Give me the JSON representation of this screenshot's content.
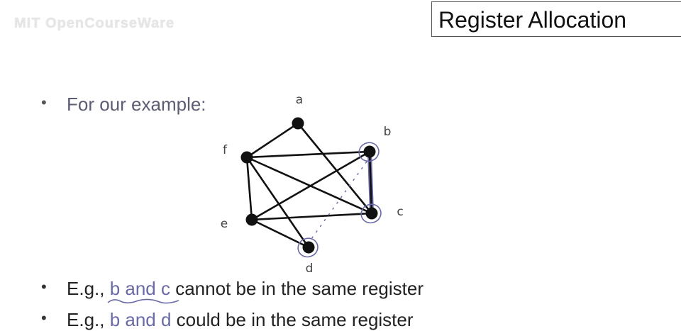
{
  "watermark": "MIT OpenCourseWare",
  "title": "Register Allocation",
  "bullets": {
    "b1": "For our example:",
    "b2": {
      "prefix": "E.g., ",
      "pair": "b and c",
      "suffix": " cannot be in the same register"
    },
    "b3": {
      "prefix": "E.g., ",
      "pair": "b and d",
      "suffix": " could be in the same register"
    }
  },
  "graph": {
    "nodes": [
      "a",
      "b",
      "c",
      "d",
      "e",
      "f"
    ],
    "edges": [
      [
        "a",
        "f"
      ],
      [
        "a",
        "c"
      ],
      [
        "f",
        "b"
      ],
      [
        "f",
        "c"
      ],
      [
        "f",
        "d"
      ],
      [
        "f",
        "e"
      ],
      [
        "e",
        "b"
      ],
      [
        "e",
        "c"
      ],
      [
        "e",
        "d"
      ],
      [
        "b",
        "c"
      ]
    ],
    "highlighted_edge": [
      "b",
      "c"
    ],
    "highlighted_nodes": [
      "b",
      "c",
      "d"
    ],
    "dotted_edge": [
      "b",
      "d"
    ]
  },
  "colors": {
    "node": "#111111",
    "edge": "#111111",
    "annotation": "#6a6aa6",
    "text": "#222222"
  }
}
